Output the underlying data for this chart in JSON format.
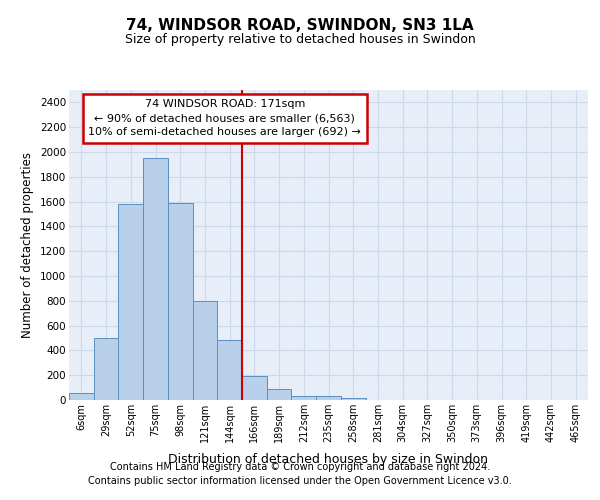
{
  "title": "74, WINDSOR ROAD, SWINDON, SN3 1LA",
  "subtitle": "Size of property relative to detached houses in Swindon",
  "xlabel": "Distribution of detached houses by size in Swindon",
  "ylabel": "Number of detached properties",
  "bar_values": [
    60,
    500,
    1580,
    1950,
    1590,
    800,
    480,
    195,
    90,
    35,
    30,
    20,
    0,
    0,
    0,
    0,
    0,
    0,
    0,
    0,
    0
  ],
  "categories": [
    "6sqm",
    "29sqm",
    "52sqm",
    "75sqm",
    "98sqm",
    "121sqm",
    "144sqm",
    "166sqm",
    "189sqm",
    "212sqm",
    "235sqm",
    "258sqm",
    "281sqm",
    "304sqm",
    "327sqm",
    "350sqm",
    "373sqm",
    "396sqm",
    "419sqm",
    "442sqm",
    "465sqm"
  ],
  "bar_color": "#b8d0ea",
  "bar_edge_color": "#5a8fc0",
  "vline_color": "#cc0000",
  "annotation_text": "74 WINDSOR ROAD: 171sqm\n← 90% of detached houses are smaller (6,563)\n10% of semi-detached houses are larger (692) →",
  "annotation_box_color": "#ffffff",
  "annotation_box_edge": "#cc0000",
  "ylim": [
    0,
    2500
  ],
  "yticks": [
    0,
    200,
    400,
    600,
    800,
    1000,
    1200,
    1400,
    1600,
    1800,
    2000,
    2200,
    2400
  ],
  "grid_color": "#cdd8ea",
  "bg_color": "#e8eef8",
  "footer1": "Contains HM Land Registry data © Crown copyright and database right 2024.",
  "footer2": "Contains public sector information licensed under the Open Government Licence v3.0."
}
